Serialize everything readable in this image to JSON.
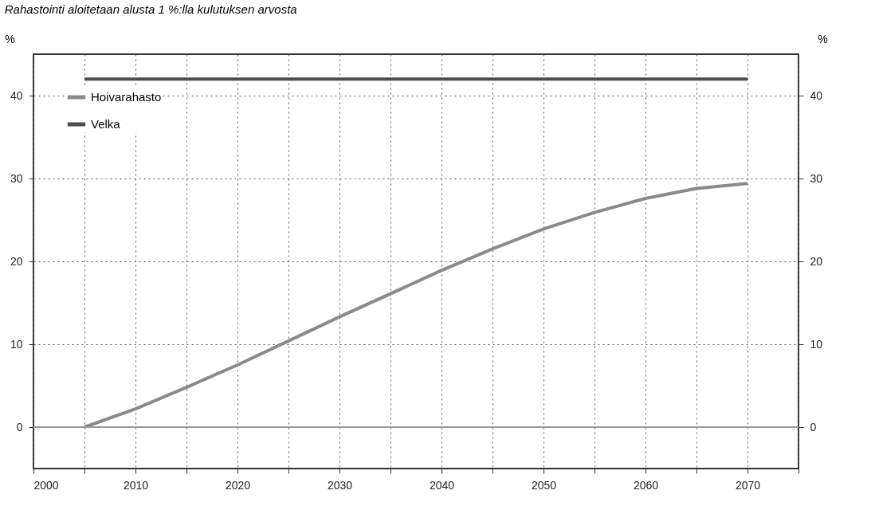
{
  "chart_data": {
    "type": "line",
    "title": "Rahastointi aloitetaan alusta 1 %:lla kulutuksen arvosta",
    "ylabel": "%",
    "y2label": "%",
    "xlim": [
      2000,
      2075
    ],
    "xticks": [
      2000,
      {
        "value": 2005,
        "label": null
      },
      2010,
      {
        "value": 2015,
        "label": null
      },
      2020,
      {
        "value": 2025,
        "label": null
      },
      2030,
      {
        "value": 2035,
        "label": null
      },
      2040,
      {
        "value": 2045,
        "label": null
      },
      2050,
      {
        "value": 2055,
        "label": null
      },
      2060,
      {
        "value": 2065,
        "label": null
      },
      2070,
      {
        "value": 2075,
        "label": null
      }
    ],
    "ylim": [
      -5,
      45
    ],
    "yticks": [
      0,
      10,
      20,
      30,
      40
    ],
    "y2lim": [
      -5,
      45
    ],
    "y2ticks": [
      0,
      10,
      20,
      30,
      40
    ],
    "grid": true,
    "legend": "top left",
    "line_style": "solid",
    "ref_lines": [
      {
        "axis": "y2",
        "value": 0,
        "color": "#999999"
      }
    ],
    "series": [
      {
        "name": "Hoivarahasto",
        "color": "#8a8a8a",
        "x": [
          2005,
          2010,
          2015,
          2020,
          2025,
          2030,
          2035,
          2040,
          2045,
          2050,
          2055,
          2060,
          2065,
          2070
        ],
        "values": [
          0,
          2.2,
          4.8,
          7.5,
          10.4,
          13.3,
          16.1,
          18.9,
          21.5,
          23.9,
          25.9,
          27.6,
          28.8,
          29.4
        ]
      },
      {
        "name": "Velka",
        "color": "#4d4d4d",
        "x": [
          2005,
          2070
        ],
        "values": [
          42,
          42
        ]
      }
    ]
  }
}
